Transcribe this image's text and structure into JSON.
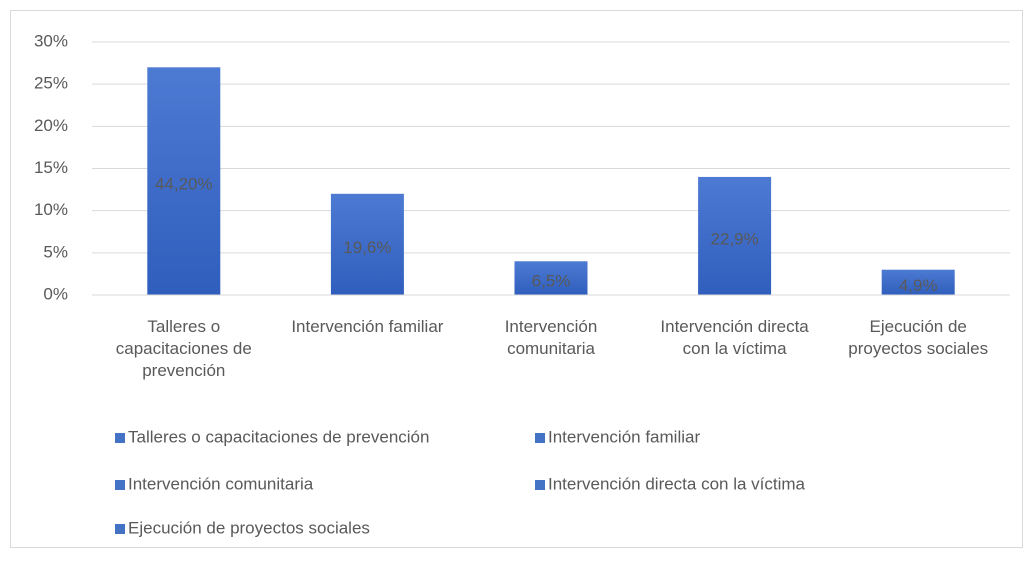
{
  "chart_data": {
    "type": "bar",
    "categories": [
      "Talleres o capacitaciones de prevención",
      "Intervención familiar",
      "Intervención comunitaria",
      "Intervención directa con la víctima",
      "Ejecución de proyectos sociales"
    ],
    "values": [
      27,
      12,
      4,
      14,
      3
    ],
    "annotations": [
      "44,20%",
      "19,6%",
      "6,5%",
      "22,9%",
      "4,9%"
    ],
    "color": "#4472c4",
    "ylim": [
      0,
      30
    ],
    "yticks": [
      {
        "value": 0,
        "label": "0%"
      },
      {
        "value": 5,
        "label": "5%"
      },
      {
        "value": 10,
        "label": "10%"
      },
      {
        "value": 15,
        "label": "15%"
      },
      {
        "value": 20,
        "label": "20%"
      },
      {
        "value": 25,
        "label": "25%"
      },
      {
        "value": 30,
        "label": "30%"
      }
    ],
    "grid": true,
    "legend": "bottom"
  }
}
